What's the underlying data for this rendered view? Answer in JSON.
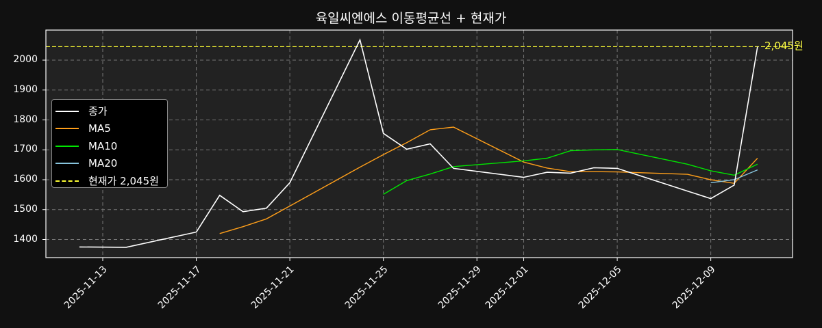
{
  "title": "육일씨엔에스 이동평균선 + 현재가",
  "chart_data": {
    "type": "line",
    "title": "육일씨엔에스 이동평균선 + 현재가",
    "xlabel": "",
    "ylabel": "",
    "ylim": [
      1338,
      2100
    ],
    "grid": true,
    "legend_position": "center left",
    "x_tick_labels": [
      "2025-11-13",
      "2025-11-17",
      "2025-11-21",
      "2025-11-25",
      "2025-11-29",
      "2025-12-01",
      "2025-12-05",
      "2025-12-09"
    ],
    "y_tick_labels": [
      "1400",
      "1500",
      "1600",
      "1700",
      "1800",
      "1900",
      "2000"
    ],
    "x": [
      "2025-11-12",
      "2025-11-14",
      "2025-11-17",
      "2025-11-18",
      "2025-11-19",
      "2025-11-20",
      "2025-11-21",
      "2025-11-24",
      "2025-11-25",
      "2025-11-26",
      "2025-11-27",
      "2025-11-28",
      "2025-12-01",
      "2025-12-02",
      "2025-12-03",
      "2025-12-04",
      "2025-12-05",
      "2025-12-08",
      "2025-12-09",
      "2025-12-10",
      "2025-12-11"
    ],
    "series": [
      {
        "name": "종가",
        "color": "#ffffff",
        "values": [
          1375,
          1374,
          1425,
          1548,
          1493,
          1505,
          1590,
          2068,
          1755,
          1702,
          1720,
          1638,
          1608,
          1625,
          1622,
          1640,
          1638,
          1562,
          1537,
          1582,
          2045
        ]
      },
      {
        "name": "MA5",
        "color": "#ff9f1a",
        "values": [
          null,
          null,
          null,
          1420,
          1443,
          1469,
          1512,
          1642,
          1684,
          1724,
          1767,
          1776,
          1659,
          1639,
          1627,
          1627,
          1626,
          1618,
          1600,
          1588,
          1672
        ]
      },
      {
        "name": "MA10",
        "color": "#00e600",
        "values": [
          null,
          null,
          null,
          null,
          null,
          null,
          null,
          null,
          1551,
          1597,
          1619,
          1644,
          1663,
          1672,
          1697,
          1700,
          1701,
          1652,
          1630,
          1615,
          1652
        ]
      },
      {
        "name": "MA20",
        "color": "#87c4dd",
        "values": [
          null,
          null,
          null,
          null,
          null,
          null,
          null,
          null,
          null,
          null,
          null,
          null,
          null,
          null,
          null,
          null,
          null,
          null,
          1590,
          1600,
          1633
        ]
      }
    ],
    "hline": {
      "name": "현재가 2,045원",
      "value": 2045,
      "color": "#ffff33",
      "label": "2,045원"
    }
  },
  "legend": {
    "items": [
      {
        "label": "종가",
        "color": "#ffffff",
        "dashed": false
      },
      {
        "label": "MA5",
        "color": "#ff9f1a",
        "dashed": false
      },
      {
        "label": "MA10",
        "color": "#00e600",
        "dashed": false
      },
      {
        "label": "MA20",
        "color": "#87c4dd",
        "dashed": false
      },
      {
        "label": "현재가 2,045원",
        "color": "#ffff33",
        "dashed": true
      }
    ]
  },
  "price_label": "2,045원",
  "colors": {
    "background": "#111111",
    "plot_bg": "#222222",
    "grid": "#777777",
    "axis": "#ffffff"
  }
}
